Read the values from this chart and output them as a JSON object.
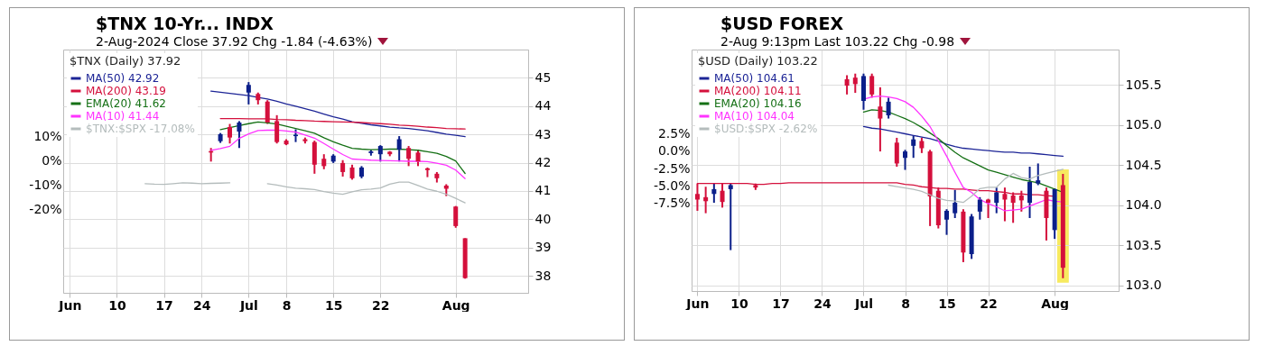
{
  "chart_data": [
    {
      "type": "candlestick",
      "title": "$TNX 10-Yr... INDX",
      "subtitle": "2-Aug-2024 Close 37.92 Chg -1.84 (-4.63%)",
      "legend_title": "$TNX (Daily) 37.92",
      "legend": "top left",
      "grid": true,
      "categories": [
        "Jun",
        null,
        null,
        null,
        null,
        "10",
        null,
        null,
        null,
        null,
        "17",
        null,
        null,
        null,
        "24",
        null,
        null,
        null,
        null,
        "Jul",
        null,
        null,
        null,
        "8",
        null,
        null,
        null,
        null,
        "15",
        null,
        null,
        null,
        null,
        "22",
        null,
        null,
        null,
        null,
        null,
        null,
        null,
        "Aug",
        null,
        null,
        null,
        null,
        null,
        null,
        null
      ],
      "ylim": [
        37.4,
        46
      ],
      "yticks": [
        38,
        39,
        40,
        41,
        42,
        43,
        44,
        45
      ],
      "y2lim": [
        -53.7,
        45.2
      ],
      "y2ticks": [
        {
          "value": 10,
          "label": "10%"
        },
        {
          "value": 0,
          "label": "0%"
        },
        {
          "value": -10,
          "label": "-10%"
        },
        {
          "value": -20,
          "label": "-20%"
        }
      ],
      "ohlc": [
        null,
        null,
        null,
        null,
        null,
        null,
        null,
        null,
        null,
        null,
        null,
        null,
        null,
        null,
        null,
        [
          42.41,
          42.52,
          42.04,
          42.36
        ],
        [
          42.76,
          43.05,
          42.7,
          43.01
        ],
        [
          43.26,
          43.37,
          42.68,
          42.89
        ],
        [
          43.1,
          43.47,
          42.52,
          43.42
        ],
        [
          44.48,
          44.85,
          44.06,
          44.75
        ],
        [
          44.43,
          44.48,
          44.06,
          44.21
        ],
        [
          44.16,
          44.21,
          43.37,
          43.42
        ],
        [
          43.47,
          43.68,
          42.68,
          42.73
        ],
        [
          42.78,
          42.83,
          42.62,
          42.65
        ],
        [
          42.94,
          43.18,
          42.73,
          42.99
        ],
        [
          42.83,
          42.89,
          42.68,
          42.76
        ],
        [
          42.73,
          42.78,
          41.61,
          41.93
        ],
        [
          42.14,
          42.3,
          41.77,
          41.88
        ],
        [
          42.04,
          42.3,
          41.99,
          42.25
        ],
        [
          41.99,
          42.09,
          41.51,
          41.67
        ],
        [
          41.83,
          41.93,
          41.4,
          41.45
        ],
        [
          41.51,
          41.88,
          41.45,
          41.83
        ],
        [
          42.34,
          42.46,
          42.25,
          42.4
        ],
        [
          42.3,
          42.62,
          42.04,
          42.59
        ],
        [
          42.39,
          42.41,
          42.23,
          42.3
        ],
        [
          42.46,
          42.94,
          42.04,
          42.83
        ],
        [
          42.52,
          42.59,
          41.88,
          42.14
        ],
        [
          42.36,
          42.46,
          41.88,
          42.04
        ],
        [
          41.8,
          41.83,
          41.49,
          41.74
        ],
        [
          41.61,
          41.67,
          41.3,
          41.45
        ],
        [
          41.19,
          41.24,
          40.82,
          41.08
        ],
        [
          40.45,
          40.47,
          39.7,
          39.76
        ],
        [
          39.33,
          39.33,
          37.9,
          37.92
        ],
        null,
        null,
        null,
        null,
        null,
        null
      ],
      "colors": [
        null,
        null,
        null,
        null,
        null,
        null,
        null,
        null,
        null,
        null,
        null,
        null,
        null,
        null,
        null,
        "#d4103c",
        "#0b1f8a",
        "#d4103c",
        "#0b1f8a",
        "#0b1f8a",
        "#d4103c",
        "#d4103c",
        "#d4103c",
        "#d4103c",
        "#0b1f8a",
        "#d4103c",
        "#d4103c",
        "#d4103c",
        "#0b1f8a",
        "#d4103c",
        "#d4103c",
        "#0b1f8a",
        "#0b1f8a",
        "#0b1f8a",
        "#d4103c",
        "#0b1f8a",
        "#d4103c",
        "#d4103c",
        "#d4103c",
        "#d4103c",
        "#d4103c",
        "#d4103c",
        "#d4103c",
        null,
        null,
        null,
        null,
        null,
        null
      ],
      "series": [
        {
          "type": "line",
          "name": "MA(50) 42.92",
          "color": "#1c2496",
          "values": [
            null,
            null,
            null,
            null,
            null,
            null,
            null,
            null,
            null,
            null,
            null,
            null,
            null,
            null,
            null,
            44.53,
            44.49,
            44.45,
            44.41,
            44.37,
            44.31,
            44.25,
            44.17,
            44.08,
            44.0,
            43.91,
            43.82,
            43.72,
            43.62,
            43.54,
            43.45,
            43.39,
            43.34,
            43.3,
            43.26,
            43.23,
            43.21,
            43.17,
            43.13,
            43.07,
            43.01,
            42.97,
            42.92,
            null,
            null,
            null,
            null,
            null,
            null
          ]
        },
        {
          "type": "line",
          "name": "MA(200) 43.19",
          "color": "#d4103c",
          "values": [
            null,
            null,
            null,
            null,
            null,
            null,
            null,
            null,
            null,
            null,
            null,
            null,
            null,
            null,
            null,
            null,
            43.56,
            43.56,
            43.56,
            43.55,
            43.55,
            43.55,
            43.53,
            43.52,
            43.5,
            43.49,
            43.47,
            43.46,
            43.45,
            43.44,
            43.43,
            43.42,
            43.4,
            43.38,
            43.36,
            43.33,
            43.31,
            43.29,
            43.26,
            43.24,
            43.21,
            43.2,
            43.19,
            null,
            null,
            null,
            null,
            null,
            null
          ]
        },
        {
          "type": "line",
          "name": "EMA(20) 41.62",
          "color": "#157015",
          "values": [
            null,
            null,
            null,
            null,
            null,
            null,
            null,
            null,
            null,
            null,
            null,
            null,
            null,
            null,
            null,
            null,
            43.17,
            43.24,
            43.31,
            43.38,
            43.44,
            43.41,
            43.37,
            43.29,
            43.21,
            43.13,
            43.04,
            42.88,
            42.74,
            42.62,
            42.51,
            42.48,
            42.46,
            42.47,
            42.48,
            42.48,
            42.46,
            42.44,
            42.39,
            42.33,
            42.22,
            42.06,
            41.62,
            null,
            null,
            null,
            null,
            null,
            null
          ]
        },
        {
          "type": "line",
          "name": "MA(10) 41.44",
          "color": "#ff33ff",
          "values": [
            null,
            null,
            null,
            null,
            null,
            null,
            null,
            null,
            null,
            null,
            null,
            null,
            null,
            null,
            null,
            42.44,
            42.5,
            42.58,
            42.86,
            43.02,
            43.14,
            43.15,
            43.15,
            43.12,
            43.08,
            42.98,
            42.87,
            42.68,
            42.48,
            42.29,
            42.13,
            42.11,
            42.09,
            42.08,
            42.07,
            42.06,
            42.05,
            42.05,
            42.04,
            41.98,
            41.91,
            41.74,
            41.44,
            null,
            null,
            null,
            null,
            null,
            null
          ]
        },
        {
          "type": "line",
          "name": "$TNX:$SPX -17.08%",
          "color": "#b4bcbc",
          "axis": "y2",
          "values": [
            null,
            null,
            null,
            null,
            null,
            null,
            null,
            null,
            -9.3,
            -9.5,
            -9.6,
            -9.3,
            -9.0,
            -9.1,
            -9.3,
            -9.2,
            -9.1,
            -9.0,
            null,
            null,
            null,
            -9.3,
            -9.9,
            -10.6,
            -11.2,
            -11.4,
            -11.7,
            -12.5,
            -13.2,
            -13.6,
            -12.6,
            -11.8,
            -11.5,
            -11.1,
            -9.5,
            -8.7,
            -8.7,
            -10.1,
            -11.5,
            -12.4,
            -13.6,
            -15.3,
            -17.1,
            null,
            null,
            null,
            null,
            null,
            null
          ]
        }
      ]
    },
    {
      "type": "candlestick",
      "title": "$USD FOREX",
      "subtitle": "2-Aug 9:13pm Last 103.22 Chg -0.98",
      "legend_title": "$USD (Daily) 103.22",
      "legend": "top left",
      "grid": true,
      "categories": [
        "Jun",
        null,
        null,
        null,
        null,
        "10",
        null,
        null,
        null,
        null,
        "17",
        null,
        null,
        null,
        null,
        "24",
        null,
        null,
        null,
        null,
        "Jul",
        null,
        null,
        null,
        null,
        "8",
        null,
        null,
        null,
        null,
        "15",
        null,
        null,
        null,
        null,
        "22",
        null,
        null,
        null,
        null,
        null,
        null,
        null,
        "Aug",
        null,
        null,
        null,
        null,
        null,
        null,
        null
      ],
      "ylim": [
        102.93,
        105.94
      ],
      "yticks": [
        {
          "value": 103,
          "label": "103.0"
        },
        103.5,
        {
          "value": 104,
          "label": "104.0"
        },
        104.5,
        {
          "value": 105,
          "label": "105.0"
        },
        105.5
      ],
      "y2lim": [
        -20.2,
        14.7
      ],
      "y2ticks": [
        {
          "value": 2.5,
          "label": "2.5%"
        },
        {
          "value": 0,
          "label": "0.0%"
        },
        {
          "value": -2.5,
          "label": "-2.5%"
        },
        {
          "value": -5,
          "label": "-5.0%"
        },
        {
          "value": -7.5,
          "label": "-7.5%"
        }
      ],
      "ohlc": [
        [
          104.14,
          104.27,
          103.93,
          104.07
        ],
        [
          104.1,
          104.23,
          103.9,
          104.05
        ],
        [
          104.14,
          104.27,
          104.03,
          104.2
        ],
        [
          104.18,
          104.27,
          103.97,
          104.04
        ],
        [
          104.2,
          104.27,
          103.44,
          104.25
        ],
        null,
        null,
        [
          104.25,
          104.27,
          104.19,
          104.22
        ],
        null,
        null,
        null,
        null,
        null,
        null,
        null,
        null,
        null,
        null,
        [
          105.57,
          105.62,
          105.38,
          105.49
        ],
        [
          105.59,
          105.64,
          105.4,
          105.51
        ],
        [
          105.3,
          105.64,
          105.19,
          105.61
        ],
        [
          105.61,
          105.64,
          105.34,
          105.38
        ],
        [
          105.23,
          105.47,
          104.67,
          105.08
        ],
        [
          105.12,
          105.34,
          105.08,
          105.29
        ],
        [
          104.78,
          104.84,
          104.48,
          104.52
        ],
        [
          104.59,
          104.69,
          104.44,
          104.67
        ],
        [
          104.74,
          104.87,
          104.59,
          104.82
        ],
        [
          104.8,
          104.84,
          104.65,
          104.71
        ],
        [
          104.67,
          104.69,
          103.74,
          104.11
        ],
        [
          104.18,
          104.22,
          103.71,
          103.75
        ],
        [
          103.82,
          103.95,
          103.63,
          103.93
        ],
        [
          103.9,
          104.19,
          103.84,
          104.03
        ],
        [
          103.92,
          103.95,
          103.29,
          103.41
        ],
        [
          103.39,
          103.89,
          103.33,
          103.86
        ],
        [
          103.92,
          104.1,
          103.82,
          104.07
        ],
        [
          104.07,
          104.08,
          103.84,
          104.03
        ],
        [
          104.03,
          104.22,
          103.9,
          104.16
        ],
        [
          104.14,
          104.22,
          103.8,
          104.07
        ],
        [
          104.12,
          104.16,
          103.78,
          104.03
        ],
        [
          104.12,
          104.18,
          103.92,
          104.06
        ],
        [
          104.03,
          104.48,
          103.84,
          104.29
        ],
        [
          104.27,
          104.52,
          104.25,
          104.31
        ],
        [
          104.18,
          104.22,
          103.56,
          103.84
        ],
        [
          103.69,
          104.21,
          103.58,
          104.2
        ],
        [
          104.25,
          104.39,
          103.09,
          103.22
        ],
        null,
        null,
        null,
        null,
        null,
        null
      ],
      "colors": [
        "#d4103c",
        "#d4103c",
        "#0b1f8a",
        "#d4103c",
        "#0b1f8a",
        null,
        null,
        "#d4103c",
        null,
        null,
        null,
        null,
        null,
        null,
        null,
        null,
        null,
        null,
        "#d4103c",
        "#d4103c",
        "#0b1f8a",
        "#d4103c",
        "#d4103c",
        "#0b1f8a",
        "#d4103c",
        "#0b1f8a",
        "#0b1f8a",
        "#d4103c",
        "#d4103c",
        "#d4103c",
        "#0b1f8a",
        "#0b1f8a",
        "#d4103c",
        "#0b1f8a",
        "#0b1f8a",
        "#d4103c",
        "#0b1f8a",
        "#d4103c",
        "#d4103c",
        "#d4103c",
        "#0b1f8a",
        "#0b1f8a",
        "#d4103c",
        "#0b1f8a",
        "#d4103c",
        null,
        null,
        null,
        null,
        null,
        null
      ],
      "series": [
        {
          "type": "line",
          "name": "MA(50) 104.61",
          "color": "#1c2496",
          "values": [
            null,
            null,
            null,
            null,
            null,
            null,
            null,
            null,
            null,
            null,
            null,
            null,
            null,
            null,
            null,
            null,
            null,
            null,
            null,
            null,
            104.98,
            104.96,
            104.95,
            104.93,
            104.91,
            104.89,
            104.87,
            104.85,
            104.83,
            104.8,
            104.76,
            104.73,
            104.71,
            104.7,
            104.69,
            104.68,
            104.67,
            104.66,
            104.66,
            104.65,
            104.65,
            104.64,
            104.63,
            104.62,
            104.61,
            null,
            null,
            null,
            null,
            null,
            null
          ]
        },
        {
          "type": "line",
          "name": "MA(200) 104.11",
          "color": "#d4103c",
          "values": [
            104.27,
            104.27,
            104.27,
            104.27,
            104.27,
            104.27,
            104.27,
            104.26,
            104.26,
            104.27,
            104.27,
            104.28,
            104.28,
            104.28,
            104.28,
            104.28,
            104.28,
            104.28,
            104.28,
            104.28,
            104.28,
            104.28,
            104.28,
            104.28,
            104.28,
            104.26,
            104.25,
            104.23,
            104.22,
            104.21,
            104.21,
            104.2,
            104.2,
            104.19,
            104.18,
            104.18,
            104.17,
            104.16,
            104.14,
            104.14,
            104.13,
            104.13,
            104.12,
            104.11,
            null,
            null,
            null,
            null,
            null,
            null,
            null
          ]
        },
        {
          "type": "line",
          "name": "EMA(20) 104.16",
          "color": "#157015",
          "values": [
            null,
            null,
            null,
            null,
            null,
            null,
            null,
            null,
            null,
            null,
            null,
            null,
            null,
            null,
            null,
            null,
            null,
            null,
            null,
            null,
            105.16,
            105.19,
            105.18,
            105.16,
            105.12,
            105.08,
            105.03,
            104.97,
            104.9,
            104.83,
            104.74,
            104.66,
            104.59,
            104.54,
            104.49,
            104.44,
            104.41,
            104.38,
            104.35,
            104.32,
            104.3,
            104.28,
            104.24,
            104.2,
            104.16,
            null,
            null,
            null,
            null,
            null,
            null
          ]
        },
        {
          "type": "line",
          "name": "MA(10) 104.04",
          "color": "#ff33ff",
          "values": [
            null,
            null,
            null,
            null,
            null,
            null,
            null,
            null,
            null,
            null,
            null,
            null,
            null,
            null,
            null,
            null,
            null,
            null,
            null,
            null,
            105.32,
            105.35,
            105.36,
            105.35,
            105.33,
            105.29,
            105.22,
            105.11,
            104.98,
            104.8,
            104.61,
            104.41,
            104.22,
            104.16,
            104.07,
            104.02,
            103.98,
            103.93,
            103.94,
            103.95,
            103.99,
            104.03,
            104.07,
            104.05,
            104.04,
            null,
            null,
            null,
            null,
            null,
            null
          ]
        },
        {
          "type": "line",
          "name": "$USD:$SPX -2.62%",
          "color": "#b4bcbc",
          "axis": "y2",
          "values": [
            null,
            null,
            null,
            null,
            null,
            null,
            null,
            null,
            null,
            null,
            null,
            null,
            null,
            null,
            null,
            null,
            null,
            null,
            null,
            null,
            null,
            null,
            null,
            -4.9,
            -5.1,
            -5.3,
            -5.5,
            -5.8,
            -6.3,
            -6.8,
            -7.1,
            -7.2,
            -7.4,
            -6.5,
            -5.4,
            -5.2,
            -5.2,
            -4.0,
            -3.2,
            -3.8,
            -4.0,
            -3.5,
            -3.2,
            -2.9,
            -2.6,
            null,
            null,
            null,
            null,
            null,
            null
          ]
        }
      ]
    }
  ]
}
